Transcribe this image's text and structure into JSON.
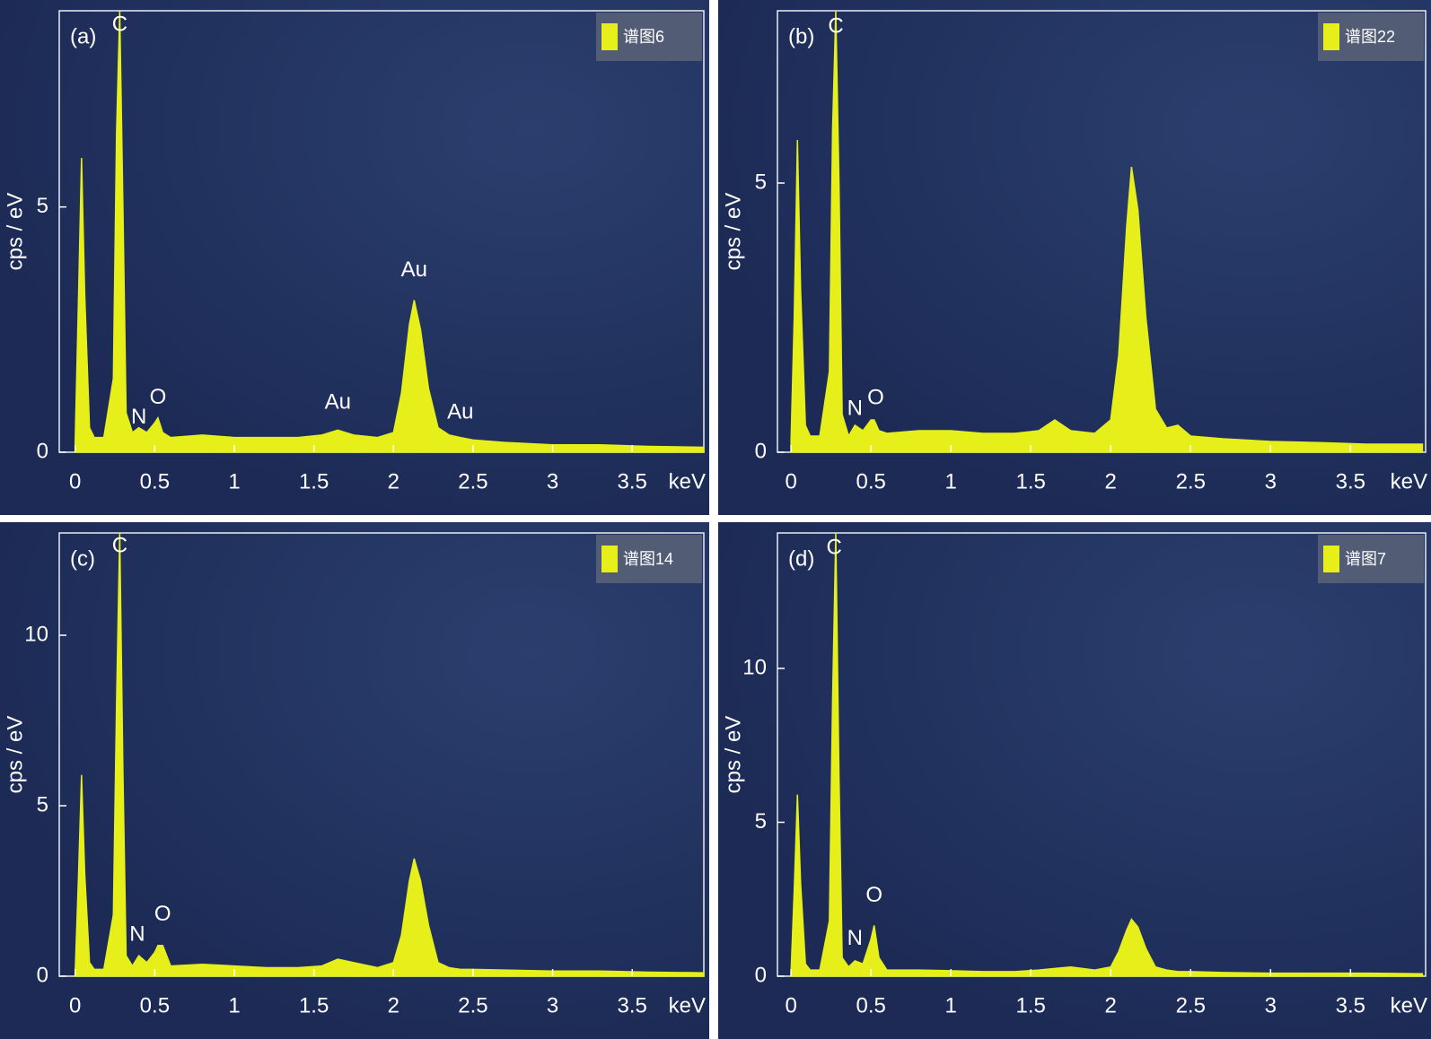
{
  "chart_data": [
    {
      "type": "area",
      "panel": "(a)",
      "xlabel": "keV",
      "ylabel": "cps / eV",
      "xlim": [
        -0.1,
        3.95
      ],
      "ylim": [
        0,
        9.0
      ],
      "xticks": [
        0,
        0.5,
        1,
        1.5,
        2,
        2.5,
        3,
        3.5
      ],
      "yticks": [
        0,
        5
      ],
      "x": [
        0,
        0.02,
        0.04,
        0.06,
        0.09,
        0.12,
        0.18,
        0.24,
        0.26,
        0.28,
        0.3,
        0.32,
        0.36,
        0.4,
        0.45,
        0.5,
        0.52,
        0.55,
        0.6,
        0.8,
        1.0,
        1.2,
        1.4,
        1.55,
        1.65,
        1.75,
        1.9,
        2.0,
        2.05,
        2.1,
        2.13,
        2.17,
        2.22,
        2.28,
        2.35,
        2.42,
        2.5,
        2.7,
        3.0,
        3.3,
        3.6,
        3.95
      ],
      "series": [
        {
          "name": "谱图6",
          "color": "#e6ef1a",
          "values": [
            0.2,
            3.0,
            6.0,
            3.2,
            0.5,
            0.3,
            0.3,
            1.5,
            6.5,
            9.0,
            5.0,
            0.8,
            0.4,
            0.5,
            0.4,
            0.6,
            0.7,
            0.4,
            0.3,
            0.35,
            0.3,
            0.3,
            0.3,
            0.35,
            0.45,
            0.35,
            0.3,
            0.4,
            1.2,
            2.6,
            3.1,
            2.5,
            1.3,
            0.5,
            0.35,
            0.3,
            0.25,
            0.2,
            0.15,
            0.15,
            0.12,
            0.1
          ]
        }
      ],
      "annotations": [
        {
          "text": "C",
          "x": 0.28,
          "y": 8.7
        },
        {
          "text": "N",
          "x": 0.4,
          "y": 0.7
        },
        {
          "text": "O",
          "x": 0.52,
          "y": 1.1
        },
        {
          "text": "Au",
          "x": 1.65,
          "y": 1.0
        },
        {
          "text": "Au",
          "x": 2.13,
          "y": 3.7
        },
        {
          "text": "Au",
          "x": 2.42,
          "y": 0.8
        }
      ]
    },
    {
      "type": "area",
      "panel": "(b)",
      "xlabel": "keV",
      "ylabel": "cps / eV",
      "xlim": [
        -0.085,
        3.97
      ],
      "ylim": [
        0,
        8.2
      ],
      "xticks": [
        0,
        0.5,
        1,
        1.5,
        2,
        2.5,
        3,
        3.5
      ],
      "yticks": [
        0,
        5
      ],
      "x": [
        0,
        0.02,
        0.04,
        0.06,
        0.09,
        0.12,
        0.18,
        0.24,
        0.26,
        0.28,
        0.3,
        0.32,
        0.36,
        0.4,
        0.45,
        0.5,
        0.52,
        0.55,
        0.6,
        0.8,
        1.0,
        1.2,
        1.4,
        1.55,
        1.65,
        1.75,
        1.9,
        2.0,
        2.05,
        2.1,
        2.13,
        2.17,
        2.22,
        2.28,
        2.35,
        2.42,
        2.5,
        2.7,
        3.0,
        3.3,
        3.6,
        3.95
      ],
      "series": [
        {
          "name": "谱图22",
          "color": "#e6ef1a",
          "values": [
            0.2,
            2.5,
            5.8,
            3.0,
            0.5,
            0.3,
            0.3,
            1.5,
            6.0,
            8.2,
            5.0,
            0.7,
            0.3,
            0.5,
            0.4,
            0.6,
            0.6,
            0.4,
            0.35,
            0.4,
            0.4,
            0.35,
            0.35,
            0.4,
            0.6,
            0.4,
            0.35,
            0.6,
            1.8,
            4.2,
            5.3,
            4.5,
            2.5,
            0.8,
            0.45,
            0.5,
            0.3,
            0.25,
            0.2,
            0.18,
            0.15,
            0.15
          ]
        }
      ],
      "annotations": [
        {
          "text": "C",
          "x": 0.28,
          "y": 7.9
        },
        {
          "text": "N",
          "x": 0.4,
          "y": 0.8
        },
        {
          "text": "O",
          "x": 0.53,
          "y": 1.0
        }
      ]
    },
    {
      "type": "area",
      "panel": "(c)",
      "xlabel": "keV",
      "ylabel": "cps / eV",
      "xlim": [
        -0.1,
        3.95
      ],
      "ylim": [
        0,
        13.0
      ],
      "xticks": [
        0,
        0.5,
        1,
        1.5,
        2,
        2.5,
        3,
        3.5
      ],
      "yticks": [
        0,
        5,
        10
      ],
      "x": [
        0,
        0.02,
        0.04,
        0.06,
        0.09,
        0.12,
        0.18,
        0.24,
        0.26,
        0.28,
        0.3,
        0.32,
        0.36,
        0.4,
        0.45,
        0.5,
        0.52,
        0.55,
        0.6,
        0.8,
        1.0,
        1.2,
        1.4,
        1.55,
        1.65,
        1.75,
        1.9,
        2.0,
        2.05,
        2.1,
        2.13,
        2.17,
        2.22,
        2.28,
        2.35,
        2.42,
        2.5,
        2.7,
        3.0,
        3.3,
        3.6,
        3.95
      ],
      "series": [
        {
          "name": "谱图14",
          "color": "#e6ef1a",
          "values": [
            0.1,
            2.8,
            5.9,
            3.0,
            0.4,
            0.2,
            0.2,
            1.8,
            8.0,
            13.0,
            6.0,
            0.6,
            0.3,
            0.6,
            0.4,
            0.7,
            0.9,
            0.9,
            0.3,
            0.35,
            0.3,
            0.25,
            0.25,
            0.3,
            0.5,
            0.4,
            0.25,
            0.4,
            1.2,
            2.8,
            3.45,
            2.8,
            1.5,
            0.4,
            0.25,
            0.2,
            0.2,
            0.18,
            0.15,
            0.15,
            0.12,
            0.1
          ]
        }
      ],
      "annotations": [
        {
          "text": "C",
          "x": 0.28,
          "y": 12.6
        },
        {
          "text": "N",
          "x": 0.39,
          "y": 1.2
        },
        {
          "text": "O",
          "x": 0.55,
          "y": 1.8
        }
      ]
    },
    {
      "type": "area",
      "panel": "(d)",
      "xlabel": "keV",
      "ylabel": "cps / eV",
      "xlim": [
        -0.085,
        3.97
      ],
      "ylim": [
        0,
        14.4
      ],
      "xticks": [
        0,
        0.5,
        1,
        1.5,
        2,
        2.5,
        3,
        3.5
      ],
      "yticks": [
        0,
        5,
        10
      ],
      "x": [
        0,
        0.02,
        0.04,
        0.06,
        0.09,
        0.12,
        0.18,
        0.24,
        0.26,
        0.28,
        0.3,
        0.32,
        0.36,
        0.4,
        0.45,
        0.5,
        0.52,
        0.55,
        0.6,
        0.8,
        1.0,
        1.2,
        1.4,
        1.55,
        1.65,
        1.75,
        1.9,
        2.0,
        2.05,
        2.1,
        2.13,
        2.17,
        2.22,
        2.28,
        2.35,
        2.42,
        2.5,
        2.7,
        3.0,
        3.3,
        3.6,
        3.95
      ],
      "series": [
        {
          "name": "谱图7",
          "color": "#e6ef1a",
          "values": [
            0.1,
            2.8,
            5.9,
            3.0,
            0.4,
            0.2,
            0.2,
            1.8,
            9.0,
            14.4,
            6.5,
            0.6,
            0.3,
            0.5,
            0.4,
            1.2,
            1.65,
            0.6,
            0.2,
            0.2,
            0.18,
            0.15,
            0.15,
            0.2,
            0.25,
            0.3,
            0.2,
            0.3,
            0.8,
            1.5,
            1.85,
            1.6,
            0.9,
            0.3,
            0.2,
            0.15,
            0.15,
            0.12,
            0.1,
            0.1,
            0.1,
            0.08
          ]
        }
      ],
      "annotations": [
        {
          "text": "C",
          "x": 0.27,
          "y": 13.9
        },
        {
          "text": "N",
          "x": 0.4,
          "y": 1.2
        },
        {
          "text": "O",
          "x": 0.52,
          "y": 2.6
        }
      ]
    }
  ]
}
